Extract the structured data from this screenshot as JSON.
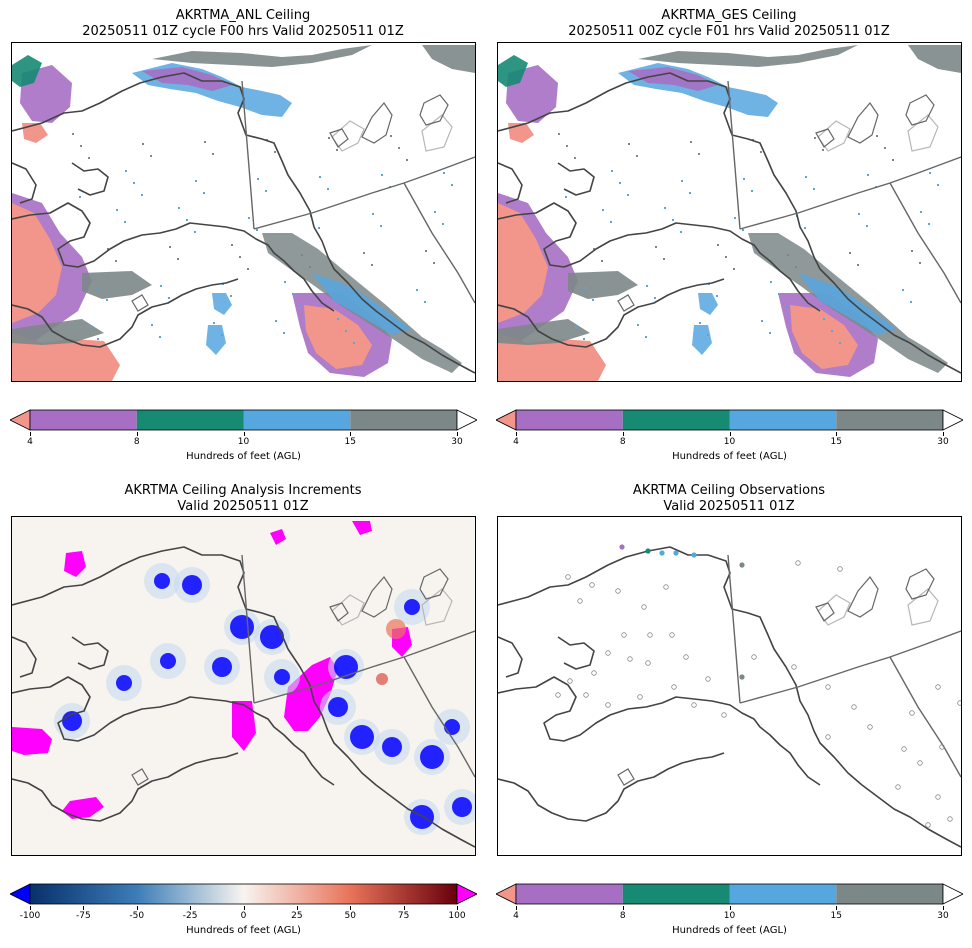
{
  "panels": [
    {
      "id": "anl",
      "title_line1": "AKRTMA_ANL Ceiling",
      "title_line2": "20250511 01Z cycle F00 hrs Valid 20250511 01Z"
    },
    {
      "id": "ges",
      "title_line1": "AKRTMA_GES Ceiling",
      "title_line2": "20250511 00Z cycle F01 hrs Valid 20250511 01Z"
    },
    {
      "id": "inc",
      "title_line1": "AKRTMA Ceiling Analysis Increments",
      "title_line2": "Valid 20250511 01Z"
    },
    {
      "id": "obs",
      "title_line1": "AKRTMA Ceiling Observations",
      "title_line2": "Valid 20250511 01Z"
    }
  ],
  "ceiling_colorbar": {
    "label": "Hundreds of feet (AGL)",
    "ticks": [
      "4",
      "8",
      "10",
      "15",
      "30"
    ],
    "colors": {
      "under": "#f2958a",
      "c4_8": "#a66fc3",
      "c8_10": "#168a73",
      "c10_15": "#56a6e0",
      "c15_30": "#7c8788",
      "over": "#ffffff"
    }
  },
  "increment_colorbar": {
    "label": "Hundreds of feet (AGL)",
    "ticks": [
      "-100",
      "-75",
      "-50",
      "-25",
      "0",
      "25",
      "50",
      "75",
      "100"
    ],
    "colors": {
      "under": "#0000ff",
      "over": "#ff00ff",
      "low": "#08306b",
      "mid": "#f7f4f0",
      "high": "#67000d"
    }
  },
  "chart_data": [
    {
      "type": "heatmap",
      "title": "AKRTMA_ANL Ceiling",
      "subtitle": "20250511 01Z cycle F00 hrs Valid 20250511 01Z",
      "colorbar_label": "Hundreds of feet (AGL)",
      "levels": [
        4,
        8,
        10,
        15,
        30
      ],
      "extend": "both"
    },
    {
      "type": "heatmap",
      "title": "AKRTMA_GES Ceiling",
      "subtitle": "20250511 00Z cycle F01 hrs Valid 20250511 01Z",
      "colorbar_label": "Hundreds of feet (AGL)",
      "levels": [
        4,
        8,
        10,
        15,
        30
      ],
      "extend": "both"
    },
    {
      "type": "heatmap",
      "title": "AKRTMA Ceiling Analysis Increments",
      "subtitle": "Valid 20250511 01Z",
      "colorbar_label": "Hundreds of feet (AGL)",
      "range": [
        -100,
        100
      ],
      "ticks": [
        -100,
        -75,
        -50,
        -25,
        0,
        25,
        50,
        75,
        100
      ],
      "extend": "both",
      "colormap": "RdBu_r"
    },
    {
      "type": "scatter",
      "title": "AKRTMA Ceiling Observations",
      "subtitle": "Valid 20250511 01Z",
      "colorbar_label": "Hundreds of feet (AGL)",
      "levels": [
        4,
        8,
        10,
        15,
        30
      ],
      "extend": "both"
    }
  ]
}
